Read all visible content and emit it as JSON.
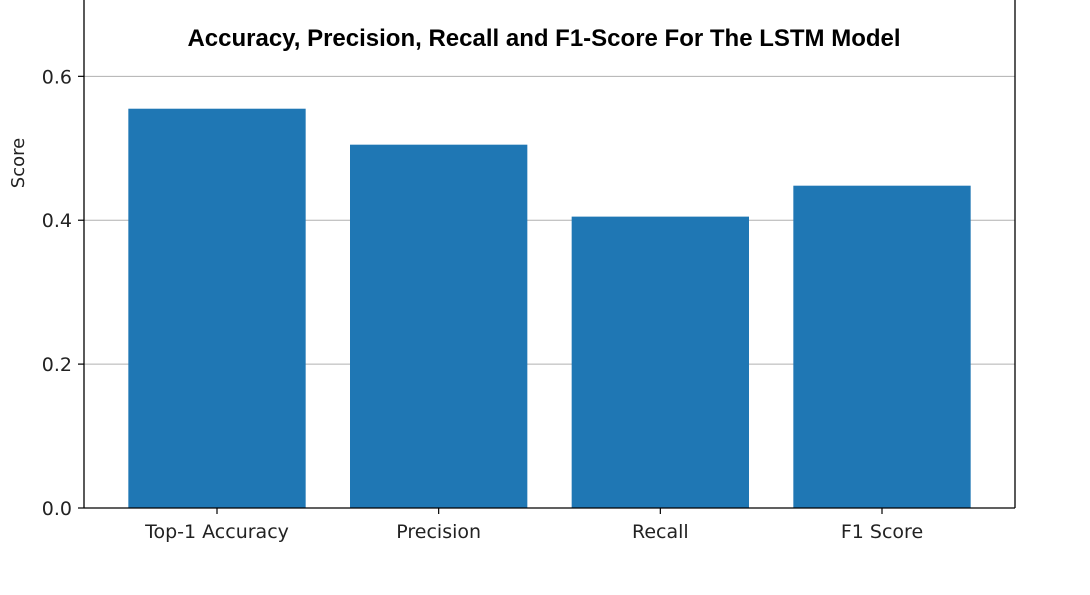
{
  "chart_data": {
    "type": "bar",
    "title": "Accuracy, Precision, Recall and F1-Score For The LSTM Model",
    "xlabel": "",
    "ylabel": "Score",
    "categories": [
      "Top-1 Accuracy",
      "Precision",
      "Recall",
      "F1 Score"
    ],
    "values": [
      0.555,
      0.505,
      0.405,
      0.448
    ],
    "ylim": [
      0,
      0.72
    ],
    "yticks": [
      0.0,
      0.2,
      0.4,
      0.6
    ],
    "ytick_labels": [
      "0.0",
      "0.2",
      "0.4",
      "0.6"
    ],
    "grid": "y",
    "bar_color": "#1f77b4",
    "grid_color": "#b0b0b0"
  }
}
